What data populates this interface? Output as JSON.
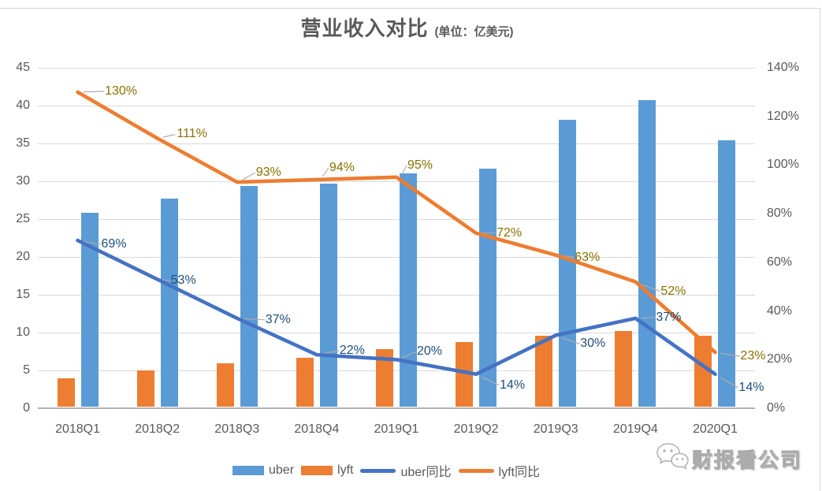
{
  "title": {
    "main": "营业收入对比",
    "unit": "(单位：亿美元)"
  },
  "watermark": {
    "label": "财报看公司",
    "icon": "wechat-icon"
  },
  "legend": [
    {
      "label": "uber",
      "type": "bar",
      "color": "#5B9BD5"
    },
    {
      "label": "lyft",
      "type": "bar",
      "color": "#ED7D31"
    },
    {
      "label": "uber同比",
      "type": "line",
      "color": "#4472C4"
    },
    {
      "label": "lyft同比",
      "type": "line",
      "color": "#ED7D31"
    }
  ],
  "chart_data": {
    "type": "combo-bar-line",
    "title": "营业收入对比 (单位：亿美元)",
    "categories": [
      "2018Q1",
      "2018Q2",
      "2018Q3",
      "2018Q4",
      "2019Q1",
      "2019Q2",
      "2019Q3",
      "2019Q4",
      "2020Q1"
    ],
    "series": [
      {
        "name": "uber",
        "type": "bar",
        "axis": "left",
        "slot": 1,
        "color": "#5B9BD5",
        "values": [
          25.8,
          27.7,
          29.4,
          29.7,
          31.0,
          31.7,
          38.1,
          40.7,
          35.4
        ]
      },
      {
        "name": "lyft",
        "type": "bar",
        "axis": "left",
        "slot": 0,
        "color": "#ED7D31",
        "values": [
          4.0,
          5.0,
          5.9,
          6.7,
          7.8,
          8.7,
          9.6,
          10.2,
          9.6
        ]
      },
      {
        "name": "uber同比",
        "type": "line",
        "axis": "right",
        "color": "#4472C4",
        "label_color": "#1F4E79",
        "values": [
          69,
          53,
          37,
          22,
          20,
          14,
          30,
          37,
          14
        ],
        "labels": [
          "69%",
          "53%",
          "37%",
          "22%",
          "20%",
          "14%",
          "30%",
          "37%",
          "14%"
        ]
      },
      {
        "name": "lyft同比",
        "type": "line",
        "axis": "right",
        "color": "#ED7D31",
        "label_color": "#8A7100",
        "values": [
          130,
          111,
          93,
          94,
          95,
          72,
          63,
          52,
          23
        ],
        "labels": [
          "130%",
          "111%",
          "93%",
          "94%",
          "95%",
          "72%",
          "63%",
          "52%",
          "23%"
        ]
      }
    ],
    "left_axis": {
      "min": 0,
      "max": 45,
      "step": 5,
      "tick_values": [
        45,
        40,
        35,
        30,
        25,
        20,
        15,
        10,
        5,
        0
      ],
      "tick_labels": [
        "45",
        "40",
        "35",
        "30",
        "25",
        "20",
        "15",
        "10",
        "5",
        "0"
      ]
    },
    "right_axis": {
      "min": 0,
      "max": 140,
      "step": 20,
      "tick_values": [
        140,
        120,
        100,
        80,
        60,
        40,
        20,
        0
      ],
      "tick_labels": [
        "140%",
        "120%",
        "100%",
        "80%",
        "60%",
        "40%",
        "20%",
        "0%"
      ]
    },
    "grid": true,
    "legend_position": "bottom"
  }
}
